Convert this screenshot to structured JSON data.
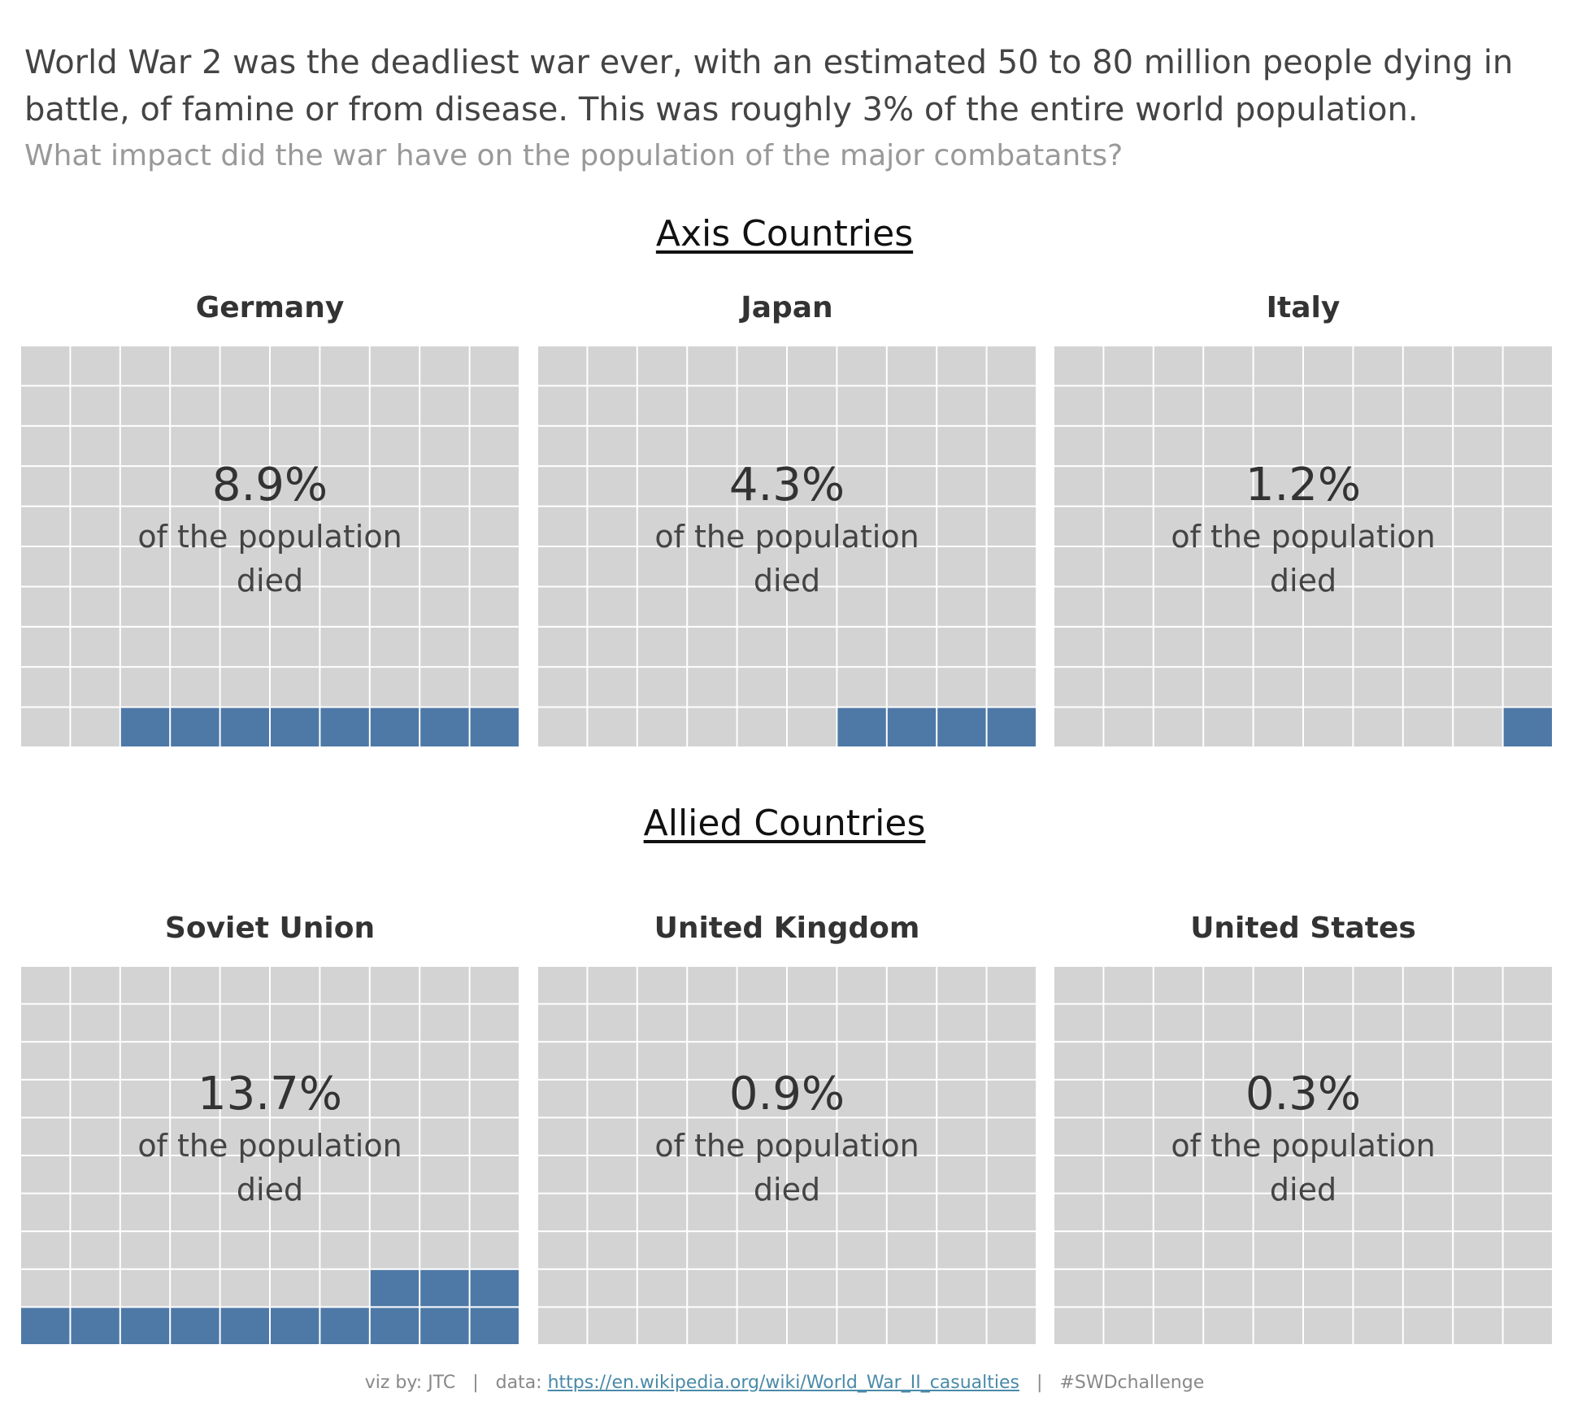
{
  "intro": {
    "line1": "World War 2 was the deadliest war ever, with an estimated  50 to 80 million people dying in",
    "line2": "battle, of famine or from disease.  This was roughly 3% of the entire world population.",
    "question": "What impact  did the war have on the population of the major combatants?"
  },
  "sections": {
    "axis_title": "Axis Countries",
    "allied_title": "Allied Countries"
  },
  "caption": {
    "line1": "of the population",
    "line2": "died"
  },
  "colors": {
    "empty": "#d3d3d3",
    "filled": "#4e79a7",
    "grid_line": "#ffffff"
  },
  "chart_data": [
    {
      "type": "waffle",
      "group": "Axis Countries",
      "country": "Germany",
      "value_label": "8.9%",
      "value": 8.9,
      "filled_cells": 8
    },
    {
      "type": "waffle",
      "group": "Axis Countries",
      "country": "Japan",
      "value_label": "4.3%",
      "value": 4.3,
      "filled_cells": 4
    },
    {
      "type": "waffle",
      "group": "Axis Countries",
      "country": "Italy",
      "value_label": "1.2%",
      "value": 1.2,
      "filled_cells": 1
    },
    {
      "type": "waffle",
      "group": "Allied Countries",
      "country": "Soviet Union",
      "value_label": "13.7%",
      "value": 13.7,
      "filled_cells": 13
    },
    {
      "type": "waffle",
      "group": "Allied Countries",
      "country": "United Kingdom",
      "value_label": "0.9%",
      "value": 0.9,
      "filled_cells": 0
    },
    {
      "type": "waffle",
      "group": "Allied Countries",
      "country": "United States",
      "value_label": "0.3%",
      "value": 0.3,
      "filled_cells": 0
    }
  ],
  "footer": {
    "credit": "viz by: JTC",
    "sep1": "|",
    "data_label": "data:",
    "data_link": "https://en.wikipedia.org/wiki/World_War_II_casualties",
    "sep2": "|",
    "hashtag": "#SWDchallenge"
  }
}
